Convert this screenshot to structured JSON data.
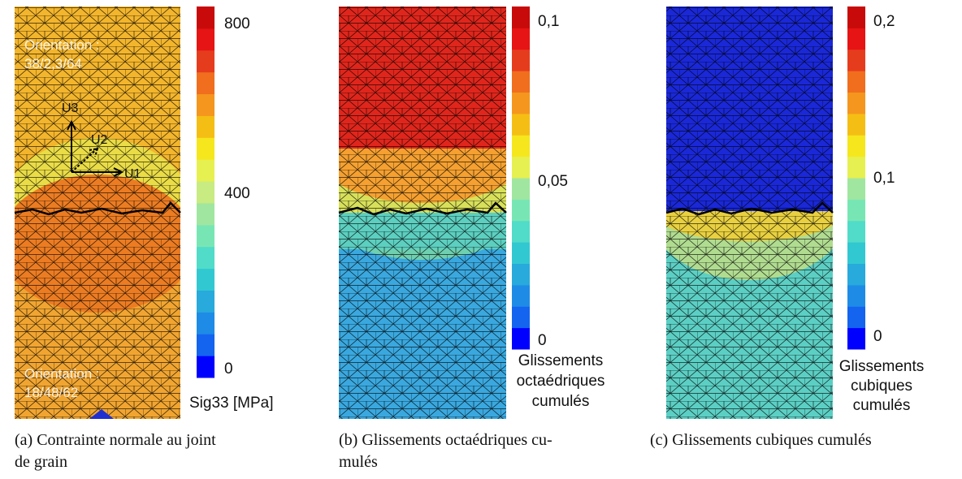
{
  "panels": [
    {
      "annotations": [
        "Orientation :",
        "38/2,3/64",
        "Orientation :",
        "18/48/62"
      ],
      "axes": [
        "U3",
        "U2",
        "U1"
      ],
      "colorbar": {
        "ticks": [
          "800",
          "400",
          "0"
        ],
        "label": [
          "Sig33 [MPa]"
        ]
      },
      "caption": [
        "(a) Contrainte normale au joint",
        "de grain"
      ]
    },
    {
      "colorbar": {
        "ticks": [
          "0,1",
          "0,05",
          "0"
        ],
        "label": [
          "Glissements",
          "octaédriques",
          "cumulés"
        ]
      },
      "caption": [
        "(b) Glissements octaédriques cu-",
        "mulés"
      ]
    },
    {
      "colorbar": {
        "ticks": [
          "0,2",
          "0,1",
          "0"
        ],
        "label": [
          "Glissements",
          "cubiques",
          "cumulés"
        ]
      },
      "caption": [
        "(c) Glissements cubiques cumulés"
      ]
    }
  ]
}
